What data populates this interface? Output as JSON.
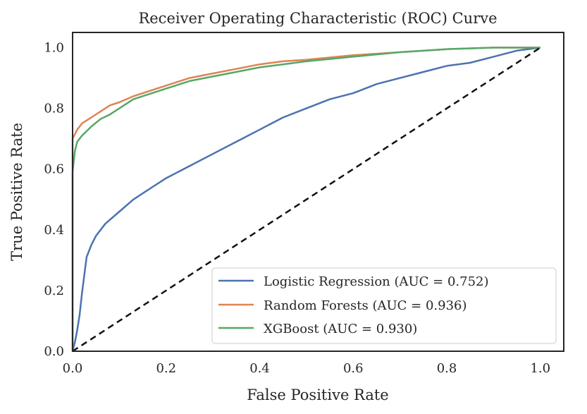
{
  "chart_data": {
    "type": "line",
    "title": "Receiver Operating Characteristic (ROC) Curve",
    "xlabel": "False Positive Rate",
    "ylabel": "True Positive Rate",
    "xlim": [
      0.0,
      1.05
    ],
    "ylim": [
      0.0,
      1.05
    ],
    "x_ticks": [
      "0.0",
      "0.2",
      "0.4",
      "0.6",
      "0.8",
      "1.0"
    ],
    "y_ticks": [
      "0.0",
      "0.2",
      "0.4",
      "0.6",
      "0.8",
      "1.0"
    ],
    "grid": false,
    "legend_position": "lower-right",
    "series": [
      {
        "name": "Logistic Regression (AUC = 0.752)",
        "color": "#4c72b0",
        "points": [
          [
            0,
            0
          ],
          [
            0.005,
            0.03
          ],
          [
            0.01,
            0.07
          ],
          [
            0.015,
            0.12
          ],
          [
            0.02,
            0.19
          ],
          [
            0.025,
            0.25
          ],
          [
            0.03,
            0.31
          ],
          [
            0.04,
            0.35
          ],
          [
            0.05,
            0.38
          ],
          [
            0.07,
            0.42
          ],
          [
            0.1,
            0.46
          ],
          [
            0.13,
            0.5
          ],
          [
            0.17,
            0.54
          ],
          [
            0.2,
            0.57
          ],
          [
            0.25,
            0.61
          ],
          [
            0.3,
            0.65
          ],
          [
            0.35,
            0.69
          ],
          [
            0.4,
            0.73
          ],
          [
            0.45,
            0.77
          ],
          [
            0.5,
            0.8
          ],
          [
            0.55,
            0.83
          ],
          [
            0.6,
            0.85
          ],
          [
            0.65,
            0.88
          ],
          [
            0.7,
            0.9
          ],
          [
            0.75,
            0.92
          ],
          [
            0.8,
            0.94
          ],
          [
            0.85,
            0.95
          ],
          [
            0.9,
            0.97
          ],
          [
            0.95,
            0.99
          ],
          [
            1.0,
            1.0
          ]
        ]
      },
      {
        "name": "Random Forests (AUC = 0.936)",
        "color": "#dd8452",
        "points": [
          [
            0,
            0
          ],
          [
            0,
            0.7
          ],
          [
            0.01,
            0.73
          ],
          [
            0.02,
            0.75
          ],
          [
            0.04,
            0.77
          ],
          [
            0.06,
            0.79
          ],
          [
            0.08,
            0.81
          ],
          [
            0.1,
            0.82
          ],
          [
            0.13,
            0.84
          ],
          [
            0.16,
            0.855
          ],
          [
            0.2,
            0.875
          ],
          [
            0.25,
            0.9
          ],
          [
            0.3,
            0.915
          ],
          [
            0.35,
            0.93
          ],
          [
            0.4,
            0.945
          ],
          [
            0.45,
            0.955
          ],
          [
            0.5,
            0.96
          ],
          [
            0.6,
            0.975
          ],
          [
            0.7,
            0.985
          ],
          [
            0.8,
            0.995
          ],
          [
            0.9,
            1.0
          ],
          [
            1.0,
            1.0
          ]
        ]
      },
      {
        "name": "XGBoost (AUC = 0.930)",
        "color": "#55a868",
        "points": [
          [
            0,
            0
          ],
          [
            0,
            0.59
          ],
          [
            0.005,
            0.66
          ],
          [
            0.01,
            0.69
          ],
          [
            0.02,
            0.71
          ],
          [
            0.04,
            0.74
          ],
          [
            0.06,
            0.765
          ],
          [
            0.08,
            0.78
          ],
          [
            0.1,
            0.8
          ],
          [
            0.13,
            0.83
          ],
          [
            0.16,
            0.845
          ],
          [
            0.2,
            0.865
          ],
          [
            0.25,
            0.89
          ],
          [
            0.3,
            0.905
          ],
          [
            0.35,
            0.92
          ],
          [
            0.4,
            0.935
          ],
          [
            0.45,
            0.945
          ],
          [
            0.5,
            0.955
          ],
          [
            0.6,
            0.97
          ],
          [
            0.7,
            0.985
          ],
          [
            0.8,
            0.995
          ],
          [
            0.9,
            1.0
          ],
          [
            1.0,
            1.0
          ]
        ]
      }
    ],
    "reference_line": {
      "color": "#111111",
      "points": [
        [
          0,
          0
        ],
        [
          1,
          1
        ]
      ]
    }
  }
}
